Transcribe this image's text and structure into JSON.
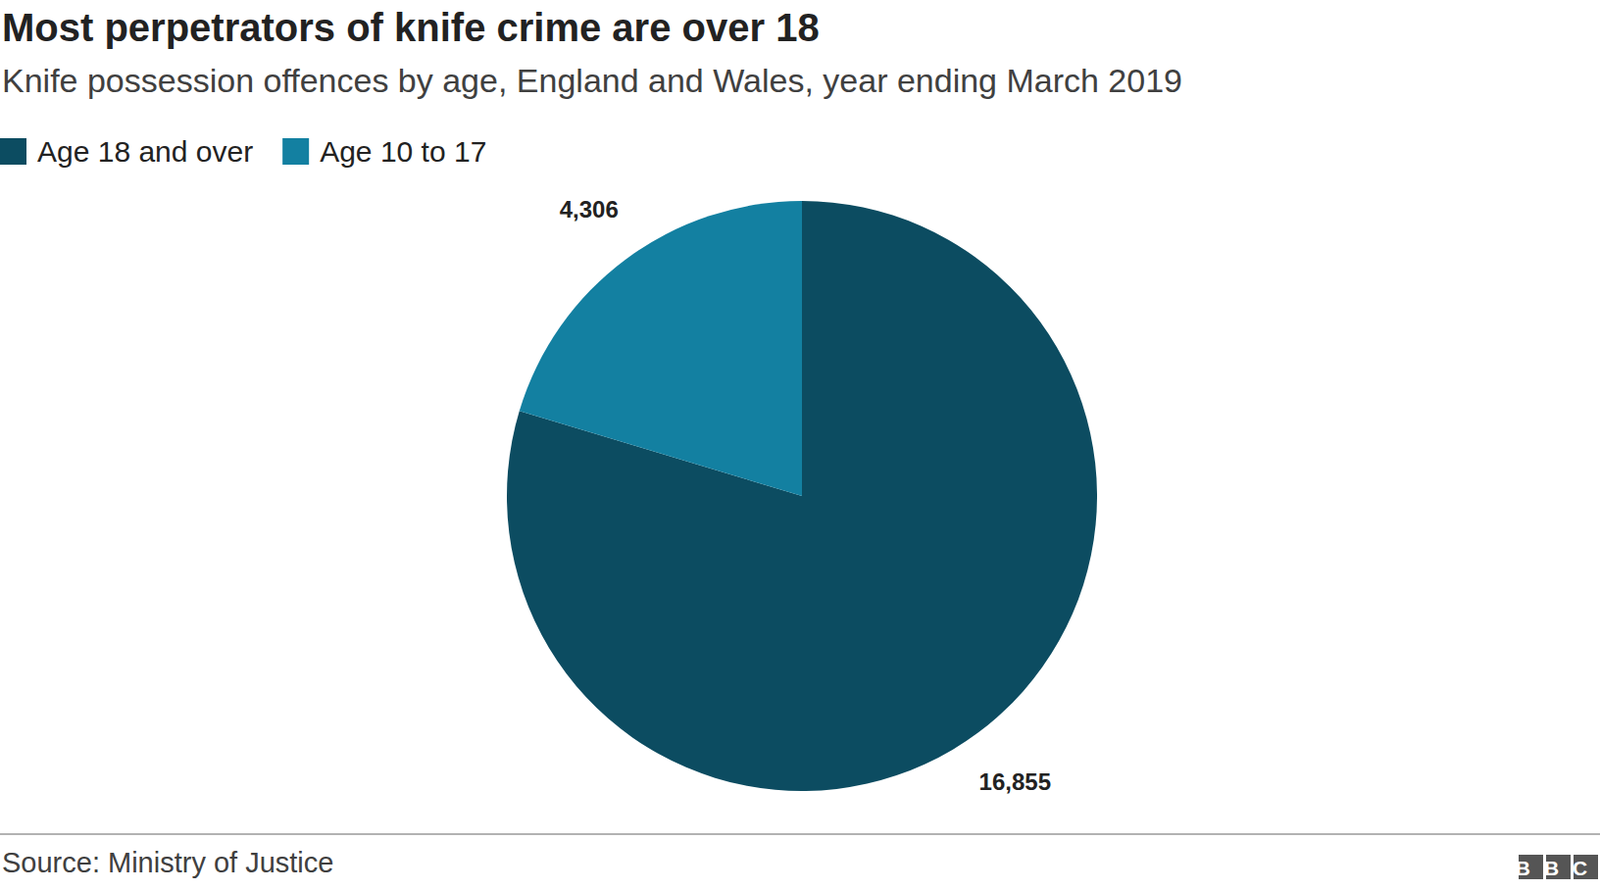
{
  "chart_data": {
    "type": "pie",
    "title": "Most perpetrators of knife crime are over 18",
    "subtitle": "Knife possession offences by age, England and Wales, year ending March 2019",
    "categories": [
      "Age 18 and over",
      "Age 10 to 17"
    ],
    "values": [
      16855,
      4306
    ],
    "value_labels": [
      "16,855",
      "4,306"
    ],
    "colors": [
      "#0c4c61",
      "#1380a1"
    ],
    "data_labels": true,
    "legend": "top-left",
    "source": "Source: Ministry of Justice",
    "branding": "BBC"
  }
}
